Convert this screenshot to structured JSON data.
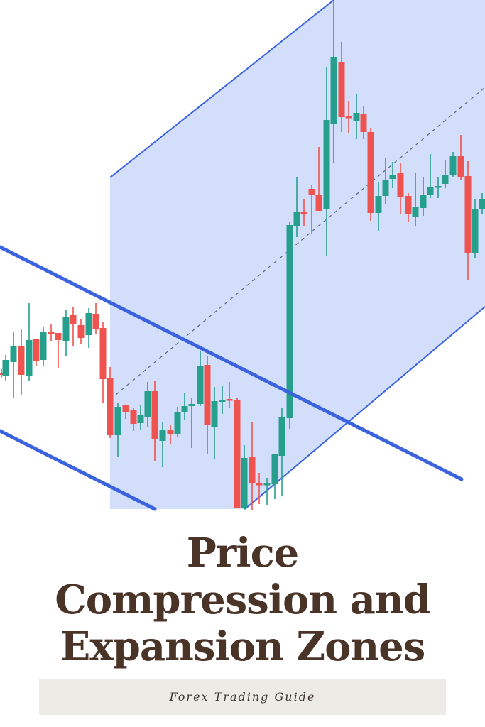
{
  "title": {
    "line1": "Price",
    "line2": "Compression and",
    "line3": "Expansion Zones"
  },
  "subtitle": "Forex Trading Guide",
  "colors": {
    "bullish": "#26a08c",
    "bearish": "#ef5350",
    "channel_line": "#3b63e0",
    "channel_fill": "#d3defb",
    "title_text": "#4a3327",
    "subtitle_bar": "#edebe6"
  },
  "illustration": {
    "type": "candlestick",
    "annotations": [
      "descending compression channel",
      "ascending expansion channel",
      "dashed channel midline"
    ]
  }
}
